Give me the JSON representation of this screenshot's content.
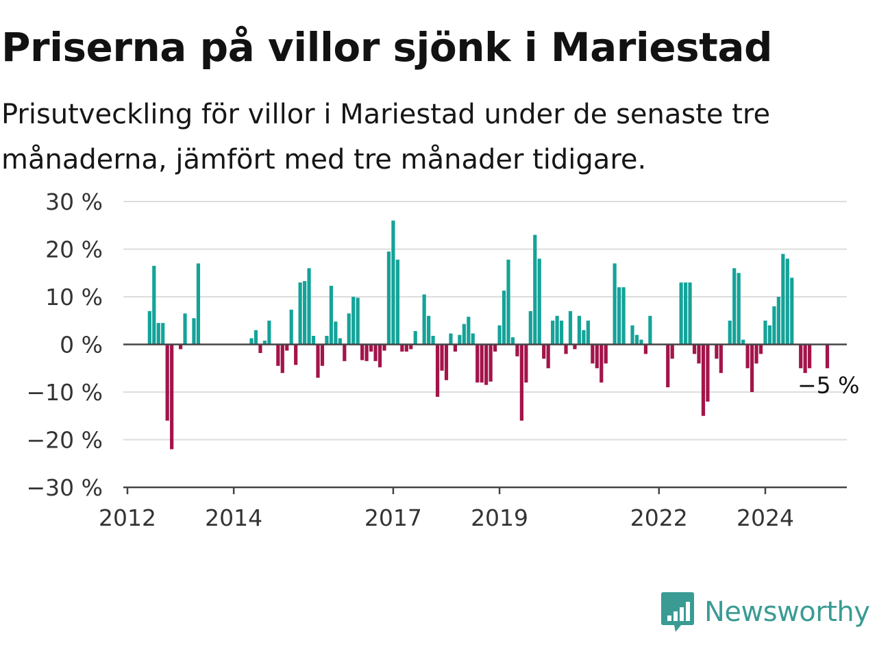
{
  "header": {
    "title": "Priserna på villor sjönk i Mariestad",
    "subtitle": "Prisutveckling för villor i Mariestad under de senaste tre månaderna, jämfört med tre månader tidigare."
  },
  "brand": {
    "name": "Newsworthy",
    "icon": "newsworthy-logo-icon"
  },
  "colors": {
    "positive": "#14a399",
    "negative": "#a3144a",
    "zero_line": "#444444",
    "grid": "#dddddd"
  },
  "chart_data": {
    "type": "bar",
    "title": "Priserna på villor sjönk i Mariestad",
    "subtitle": "Prisutveckling för villor i Mariestad under de senaste tre månaderna, jämfört med tre månader tidigare.",
    "unit": "%",
    "ylim": [
      -30,
      30
    ],
    "yticks": [
      30,
      20,
      10,
      0,
      -10,
      -20,
      -30
    ],
    "ytick_labels": [
      "30 %",
      "20 %",
      "10 %",
      "0 %",
      "−10 %",
      "−20 %",
      "−30 %"
    ],
    "xlim": [
      "2012-01",
      "2025-07"
    ],
    "xticks": [
      {
        "label": "2012",
        "date": "2012-01"
      },
      {
        "label": "2014",
        "date": "2014-01"
      },
      {
        "label": "2017",
        "date": "2017-01"
      },
      {
        "label": "2019",
        "date": "2019-01"
      },
      {
        "label": "2022",
        "date": "2022-01"
      },
      {
        "label": "2024",
        "date": "2024-01"
      }
    ],
    "grid": true,
    "annotation": {
      "text": "−5 %",
      "date": "2025-03",
      "value": -5
    },
    "series": [
      {
        "points": [
          {
            "date": "2012-06",
            "value": 7
          },
          {
            "date": "2012-07",
            "value": 16.5
          },
          {
            "date": "2012-08",
            "value": 4.5
          },
          {
            "date": "2012-09",
            "value": 4.5
          },
          {
            "date": "2012-10",
            "value": -16
          },
          {
            "date": "2012-11",
            "value": -22
          },
          {
            "date": "2013-01",
            "value": -1
          },
          {
            "date": "2013-02",
            "value": 6.5
          },
          {
            "date": "2013-04",
            "value": 5.5
          },
          {
            "date": "2013-05",
            "value": 17
          },
          {
            "date": "2014-05",
            "value": 1.3
          },
          {
            "date": "2014-06",
            "value": 3
          },
          {
            "date": "2014-07",
            "value": -1.8
          },
          {
            "date": "2014-08",
            "value": 0.8
          },
          {
            "date": "2014-09",
            "value": 5
          },
          {
            "date": "2014-11",
            "value": -4.5
          },
          {
            "date": "2014-12",
            "value": -6
          },
          {
            "date": "2015-01",
            "value": -1.3
          },
          {
            "date": "2015-02",
            "value": 7.3
          },
          {
            "date": "2015-03",
            "value": -4.3
          },
          {
            "date": "2015-04",
            "value": 13
          },
          {
            "date": "2015-05",
            "value": 13.3
          },
          {
            "date": "2015-06",
            "value": 16
          },
          {
            "date": "2015-07",
            "value": 1.8
          },
          {
            "date": "2015-08",
            "value": -7
          },
          {
            "date": "2015-09",
            "value": -4.5
          },
          {
            "date": "2015-10",
            "value": 1.8
          },
          {
            "date": "2015-11",
            "value": 12.3
          },
          {
            "date": "2015-12",
            "value": 4.8
          },
          {
            "date": "2016-01",
            "value": 1.3
          },
          {
            "date": "2016-02",
            "value": -3.5
          },
          {
            "date": "2016-03",
            "value": 6.5
          },
          {
            "date": "2016-04",
            "value": 10
          },
          {
            "date": "2016-05",
            "value": 9.8
          },
          {
            "date": "2016-06",
            "value": -3.3
          },
          {
            "date": "2016-07",
            "value": -3.5
          },
          {
            "date": "2016-08",
            "value": -1.5
          },
          {
            "date": "2016-09",
            "value": -3.5
          },
          {
            "date": "2016-10",
            "value": -4.8
          },
          {
            "date": "2016-11",
            "value": -1.3
          },
          {
            "date": "2016-12",
            "value": 19.5
          },
          {
            "date": "2017-01",
            "value": 26
          },
          {
            "date": "2017-02",
            "value": 17.8
          },
          {
            "date": "2017-03",
            "value": -1.5
          },
          {
            "date": "2017-04",
            "value": -1.5
          },
          {
            "date": "2017-05",
            "value": -1
          },
          {
            "date": "2017-06",
            "value": 2.8
          },
          {
            "date": "2017-07",
            "value": 0
          },
          {
            "date": "2017-08",
            "value": 10.5
          },
          {
            "date": "2017-09",
            "value": 6
          },
          {
            "date": "2017-10",
            "value": 1.8
          },
          {
            "date": "2017-11",
            "value": -11
          },
          {
            "date": "2017-12",
            "value": -5.5
          },
          {
            "date": "2018-01",
            "value": -7.5
          },
          {
            "date": "2018-02",
            "value": 2.3
          },
          {
            "date": "2018-03",
            "value": -1.5
          },
          {
            "date": "2018-04",
            "value": 2
          },
          {
            "date": "2018-05",
            "value": 4.3
          },
          {
            "date": "2018-06",
            "value": 5.8
          },
          {
            "date": "2018-07",
            "value": 2.3
          },
          {
            "date": "2018-08",
            "value": -8
          },
          {
            "date": "2018-09",
            "value": -8
          },
          {
            "date": "2018-10",
            "value": -8.5
          },
          {
            "date": "2018-11",
            "value": -7.8
          },
          {
            "date": "2018-12",
            "value": -1.5
          },
          {
            "date": "2019-01",
            "value": 4
          },
          {
            "date": "2019-02",
            "value": 11.3
          },
          {
            "date": "2019-03",
            "value": 17.8
          },
          {
            "date": "2019-04",
            "value": 1.5
          },
          {
            "date": "2019-05",
            "value": -2.5
          },
          {
            "date": "2019-06",
            "value": -16
          },
          {
            "date": "2019-07",
            "value": -8
          },
          {
            "date": "2019-08",
            "value": 7
          },
          {
            "date": "2019-09",
            "value": 23
          },
          {
            "date": "2019-10",
            "value": 18
          },
          {
            "date": "2019-11",
            "value": -3
          },
          {
            "date": "2019-12",
            "value": -5
          },
          {
            "date": "2020-01",
            "value": 5
          },
          {
            "date": "2020-02",
            "value": 6
          },
          {
            "date": "2020-03",
            "value": 5
          },
          {
            "date": "2020-04",
            "value": -2
          },
          {
            "date": "2020-05",
            "value": 7
          },
          {
            "date": "2020-06",
            "value": -1
          },
          {
            "date": "2020-07",
            "value": 6
          },
          {
            "date": "2020-08",
            "value": 3
          },
          {
            "date": "2020-09",
            "value": 5
          },
          {
            "date": "2020-10",
            "value": -4
          },
          {
            "date": "2020-11",
            "value": -5
          },
          {
            "date": "2020-12",
            "value": -8
          },
          {
            "date": "2021-01",
            "value": -4
          },
          {
            "date": "2021-03",
            "value": 17
          },
          {
            "date": "2021-04",
            "value": 12
          },
          {
            "date": "2021-05",
            "value": 12
          },
          {
            "date": "2021-07",
            "value": 4
          },
          {
            "date": "2021-08",
            "value": 2
          },
          {
            "date": "2021-09",
            "value": 1
          },
          {
            "date": "2021-10",
            "value": -2
          },
          {
            "date": "2021-11",
            "value": 6
          },
          {
            "date": "2022-03",
            "value": -9
          },
          {
            "date": "2022-04",
            "value": -3
          },
          {
            "date": "2022-06",
            "value": 13
          },
          {
            "date": "2022-07",
            "value": 13
          },
          {
            "date": "2022-08",
            "value": 13
          },
          {
            "date": "2022-09",
            "value": -2
          },
          {
            "date": "2022-10",
            "value": -4
          },
          {
            "date": "2022-11",
            "value": -15
          },
          {
            "date": "2022-12",
            "value": -12
          },
          {
            "date": "2023-02",
            "value": -3
          },
          {
            "date": "2023-03",
            "value": -6
          },
          {
            "date": "2023-05",
            "value": 5
          },
          {
            "date": "2023-06",
            "value": 16
          },
          {
            "date": "2023-07",
            "value": 15
          },
          {
            "date": "2023-08",
            "value": 1
          },
          {
            "date": "2023-09",
            "value": -5
          },
          {
            "date": "2023-10",
            "value": -10
          },
          {
            "date": "2023-11",
            "value": -4
          },
          {
            "date": "2023-12",
            "value": -2
          },
          {
            "date": "2024-01",
            "value": 5
          },
          {
            "date": "2024-02",
            "value": 4
          },
          {
            "date": "2024-03",
            "value": 8
          },
          {
            "date": "2024-04",
            "value": 10
          },
          {
            "date": "2024-05",
            "value": 19
          },
          {
            "date": "2024-06",
            "value": 18
          },
          {
            "date": "2024-07",
            "value": 14
          },
          {
            "date": "2024-09",
            "value": -5
          },
          {
            "date": "2024-10",
            "value": -6
          },
          {
            "date": "2024-11",
            "value": -5
          },
          {
            "date": "2025-03",
            "value": -5
          }
        ]
      }
    ]
  }
}
